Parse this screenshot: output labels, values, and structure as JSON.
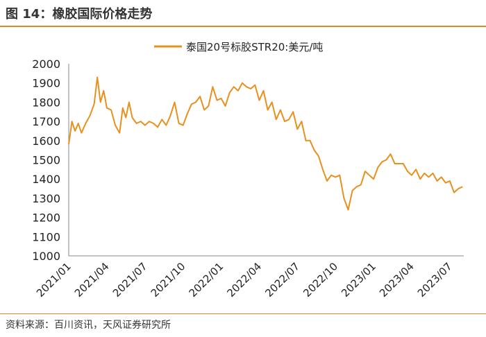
{
  "header": {
    "title": "图 14：橡胶国际价格走势"
  },
  "footer": {
    "source": "资料来源：百川资讯，天风证券研究所"
  },
  "colors": {
    "accent": "#d98a2b",
    "line": "#e8901e"
  },
  "chart_data": {
    "type": "line",
    "title": "",
    "xlabel": "",
    "ylabel": "",
    "legend_position": "top-center",
    "grid": false,
    "ylim": [
      1000,
      2000
    ],
    "yticks": [
      "1000",
      "1100",
      "1200",
      "1300",
      "1400",
      "1500",
      "1600",
      "1700",
      "1800",
      "1900",
      "2000"
    ],
    "xticks": [
      "2021/01",
      "2021/04",
      "2021/07",
      "2021/10",
      "2022/01",
      "2022/04",
      "2022/07",
      "2022/10",
      "2023/01",
      "2023/04",
      "2023/07"
    ],
    "series": [
      {
        "name": "泰国20号标胶STR20:美元/吨",
        "x": [
          "2021/01",
          "2021/01",
          "2021/01",
          "2021/01",
          "2021/02",
          "2021/02",
          "2021/02",
          "2021/03",
          "2021/03",
          "2021/03",
          "2021/03",
          "2021/04",
          "2021/04",
          "2021/04",
          "2021/05",
          "2021/05",
          "2021/05",
          "2021/05",
          "2021/06",
          "2021/06",
          "2021/06",
          "2021/07",
          "2021/07",
          "2021/07",
          "2021/08",
          "2021/08",
          "2021/08",
          "2021/09",
          "2021/09",
          "2021/09",
          "2021/10",
          "2021/10",
          "2021/10",
          "2021/11",
          "2021/11",
          "2021/11",
          "2021/12",
          "2021/12",
          "2021/12",
          "2022/01",
          "2022/01",
          "2022/01",
          "2022/02",
          "2022/02",
          "2022/02",
          "2022/03",
          "2022/03",
          "2022/03",
          "2022/04",
          "2022/04",
          "2022/04",
          "2022/05",
          "2022/05",
          "2022/05",
          "2022/06",
          "2022/06",
          "2022/06",
          "2022/07",
          "2022/07",
          "2022/07",
          "2022/08",
          "2022/08",
          "2022/08",
          "2022/09",
          "2022/09",
          "2022/09",
          "2022/10",
          "2022/10",
          "2022/10",
          "2022/11",
          "2022/11",
          "2022/11",
          "2022/12",
          "2022/12",
          "2022/12",
          "2023/01",
          "2023/01",
          "2023/01",
          "2023/02",
          "2023/02",
          "2023/02",
          "2023/03",
          "2023/03",
          "2023/03",
          "2023/04",
          "2023/04",
          "2023/04",
          "2023/05",
          "2023/05",
          "2023/05",
          "2023/06",
          "2023/06",
          "2023/06",
          "2023/07",
          "2023/07",
          "2023/07",
          "2023/08"
        ],
        "values": [
          1580,
          1700,
          1650,
          1690,
          1640,
          1690,
          1730,
          1790,
          1930,
          1800,
          1860,
          1770,
          1760,
          1680,
          1640,
          1770,
          1720,
          1800,
          1720,
          1690,
          1700,
          1680,
          1700,
          1690,
          1670,
          1710,
          1680,
          1730,
          1800,
          1690,
          1680,
          1740,
          1790,
          1800,
          1830,
          1760,
          1780,
          1880,
          1810,
          1820,
          1780,
          1850,
          1880,
          1860,
          1900,
          1880,
          1870,
          1890,
          1810,
          1860,
          1760,
          1800,
          1710,
          1760,
          1700,
          1710,
          1750,
          1660,
          1700,
          1600,
          1600,
          1550,
          1520,
          1450,
          1390,
          1420,
          1410,
          1420,
          1300,
          1240,
          1340,
          1360,
          1370,
          1440,
          1420,
          1400,
          1460,
          1490,
          1500,
          1530,
          1480,
          1480,
          1480,
          1440,
          1420,
          1450,
          1400,
          1430,
          1410,
          1430,
          1390,
          1410,
          1380,
          1390,
          1330,
          1350,
          1360
        ]
      }
    ]
  }
}
